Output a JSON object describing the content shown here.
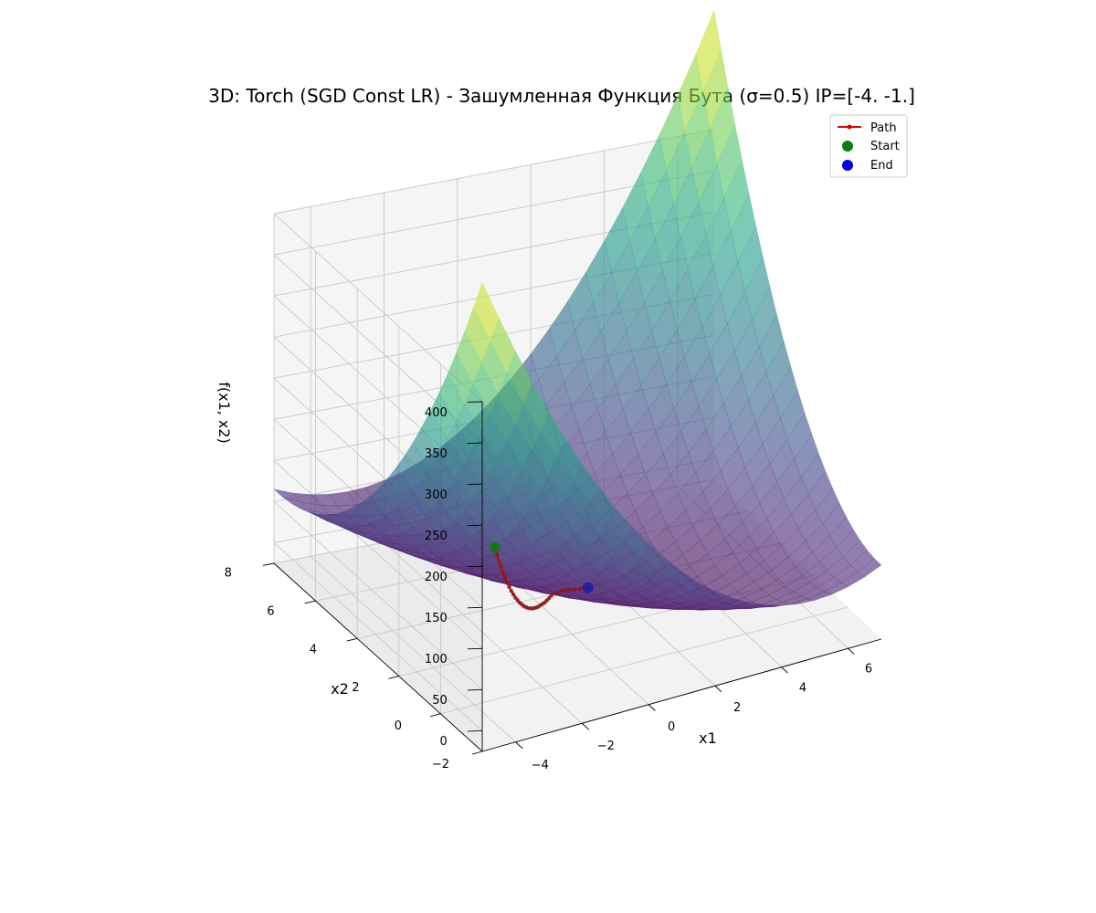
{
  "chart_data": {
    "type": "surface",
    "title": "3D: Torch (SGD Const LR) - Зашумленная Функция Бута (σ=0.5) IP=[-4. -1.]",
    "xlabel": "x1",
    "ylabel": "x2",
    "zlabel": "f(x1, x2)",
    "xlim": [
      -5,
      7
    ],
    "ylim": [
      -2,
      8
    ],
    "zlim": [
      -25,
      400
    ],
    "x_ticks": [
      -4,
      -2,
      0,
      2,
      4,
      6
    ],
    "y_ticks": [
      -2,
      0,
      2,
      4,
      6,
      8
    ],
    "z_ticks": [
      0,
      50,
      100,
      150,
      200,
      250,
      300,
      350,
      400
    ],
    "x_tick_labels": [
      "−4",
      "−2",
      "0",
      "2",
      "4",
      "6"
    ],
    "y_tick_labels": [
      "−2",
      "0",
      "2",
      "4",
      "6",
      "8"
    ],
    "z_tick_labels": [
      "0",
      "50",
      "100",
      "150",
      "200",
      "250",
      "300",
      "350",
      "400"
    ],
    "surface_function": "(x1 + 2*x2 - 7)^2 + (2*x1 + x2 - 5)^2",
    "surface_grid": {
      "x_range": [
        -5,
        7
      ],
      "y_range": [
        -2,
        8
      ],
      "steps": 24
    },
    "colormap": "viridis",
    "surface_alpha": 0.6,
    "grid": true,
    "path": [
      [
        -4.0,
        -1.0,
        189
      ],
      [
        -3.85,
        -0.85,
        175
      ],
      [
        -3.7,
        -0.7,
        162
      ],
      [
        -3.55,
        -0.55,
        150
      ],
      [
        -3.4,
        -0.4,
        138
      ],
      [
        -3.25,
        -0.25,
        127
      ],
      [
        -3.1,
        -0.1,
        116
      ],
      [
        -2.95,
        0.05,
        106
      ],
      [
        -2.8,
        0.2,
        96
      ],
      [
        -2.65,
        0.35,
        87
      ],
      [
        -2.5,
        0.5,
        78
      ],
      [
        -2.35,
        0.65,
        70
      ],
      [
        -2.2,
        0.8,
        62
      ],
      [
        -2.05,
        0.95,
        55
      ],
      [
        -1.9,
        1.1,
        48
      ],
      [
        -1.75,
        1.25,
        42
      ],
      [
        -1.6,
        1.4,
        36
      ],
      [
        -1.45,
        1.55,
        31
      ],
      [
        -1.3,
        1.7,
        26
      ],
      [
        -1.15,
        1.85,
        22
      ],
      [
        -1.0,
        2.0,
        18
      ],
      [
        -0.85,
        2.15,
        15
      ],
      [
        -0.7,
        2.3,
        12
      ],
      [
        -0.55,
        2.45,
        9
      ],
      [
        -0.4,
        2.6,
        7
      ],
      [
        -0.25,
        2.75,
        5
      ],
      [
        -0.1,
        2.9,
        3.5
      ],
      [
        0.05,
        3.0,
        2.5
      ],
      [
        0.2,
        3.05,
        1.8
      ],
      [
        0.35,
        3.1,
        1.2
      ],
      [
        0.5,
        3.1,
        0.8
      ],
      [
        0.65,
        3.05,
        0.5
      ],
      [
        0.8,
        3.02,
        0.3
      ],
      [
        0.95,
        3.0,
        0.2
      ],
      [
        1.0,
        3.0,
        0.1
      ]
    ],
    "legend": {
      "placement": "top-right",
      "entries": [
        {
          "label": "Path",
          "color": "#e00000",
          "marker": "line-dot"
        },
        {
          "label": "Start",
          "color": "#0a7d0a",
          "marker": "circle"
        },
        {
          "label": "End",
          "color": "#0000ee",
          "marker": "circle"
        }
      ]
    }
  }
}
